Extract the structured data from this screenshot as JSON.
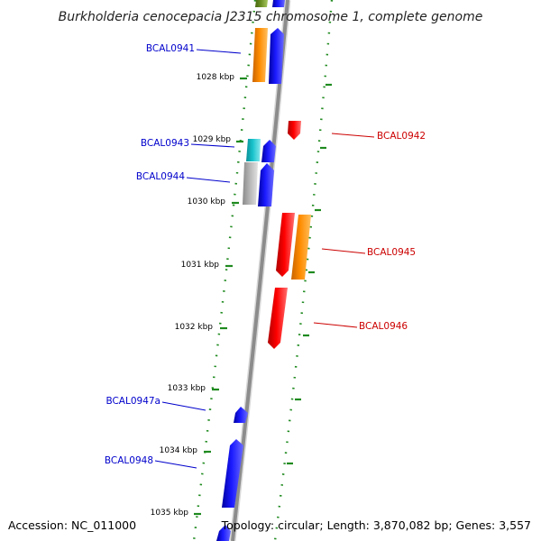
{
  "title": "Burkholderia cenocepacia J2315 chromosome 1, complete genome",
  "footer": {
    "accession": "Accession: NC_011000",
    "summary": "Topology: circular; Length: 3,870,082 bp; Genes: 3,557"
  },
  "colors": {
    "blue": "#1a1aff",
    "orange": "#ff8c00",
    "red": "#ff0000",
    "cyan": "#17c3cc",
    "grey": "#b4b4b4",
    "olive": "#6b8e23",
    "tick": "#1f8a1f",
    "label_blue": "#0000cc",
    "label_red": "#cc0000"
  },
  "ruler": [
    {
      "label": "1028 kbp"
    },
    {
      "label": "1029 kbp"
    },
    {
      "label": "1030 kbp"
    },
    {
      "label": "1031 kbp"
    },
    {
      "label": "1032 kbp"
    },
    {
      "label": "1033 kbp"
    },
    {
      "label": "1034 kbp"
    },
    {
      "label": "1035 kbp"
    }
  ],
  "genes": [
    {
      "label": "BCAL0941",
      "strand": "-",
      "color": "blue"
    },
    {
      "label": "BCAL0942",
      "strand": "+",
      "color": "red"
    },
    {
      "label": "BCAL0943",
      "strand": "-",
      "color": "cyan"
    },
    {
      "label": "BCAL0944",
      "strand": "-",
      "color": "grey"
    },
    {
      "label": "BCAL0945",
      "strand": "+",
      "color": "orange"
    },
    {
      "label": "BCAL0946",
      "strand": "+",
      "color": "red"
    },
    {
      "label": "BCAL0947a",
      "strand": "-",
      "color": "blue"
    },
    {
      "label": "BCAL0948",
      "strand": "-",
      "color": "blue"
    }
  ]
}
